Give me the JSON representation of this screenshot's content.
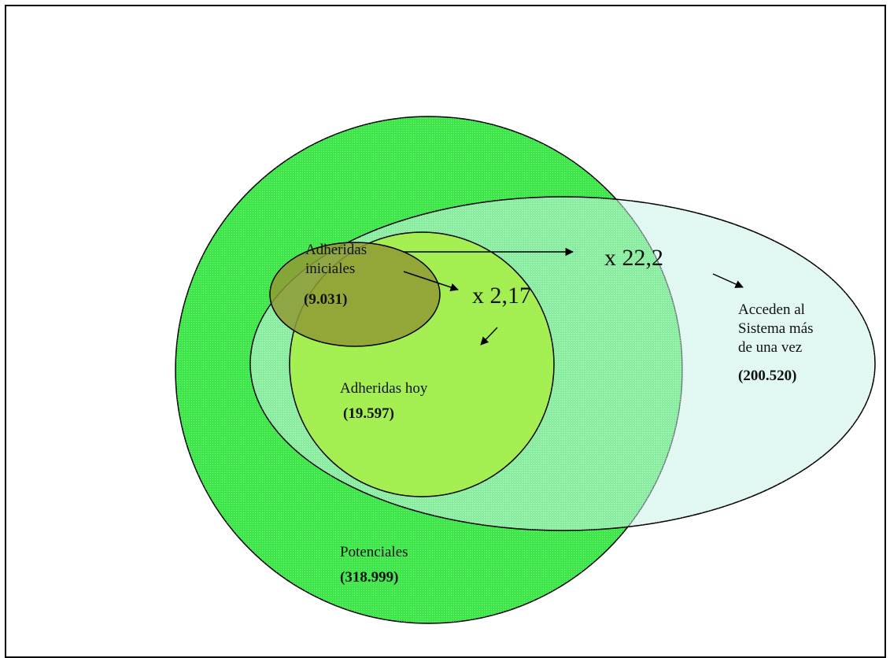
{
  "colors": {
    "potenciales": "#3ee64a",
    "acceden": "#c6f3e6",
    "adheridas_hoy": "#a8ef44",
    "adheridas_iniciales": "#8f9a34",
    "stroke": "#000000"
  },
  "sets": {
    "potenciales": {
      "name": "Potenciales",
      "value": "(318.999)"
    },
    "acceden": {
      "line1": "Acceden al",
      "line2": "Sistema  más",
      "line3": "de una vez",
      "value": "(200.520)"
    },
    "adheridas_hoy": {
      "name": "Adheridas hoy",
      "value": "(19.597)"
    },
    "adheridas_iniciales": {
      "line1": "Adheridas",
      "line2": "iniciales",
      "value": "(9.031)"
    }
  },
  "multipliers": {
    "x_22": "x 22,2",
    "x_2": "x 2,17"
  }
}
